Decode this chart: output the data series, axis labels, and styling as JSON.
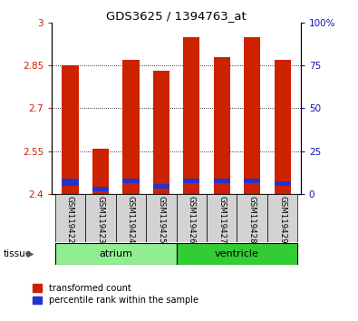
{
  "title": "GDS3625 / 1394763_at",
  "samples": [
    "GSM119422",
    "GSM119423",
    "GSM119424",
    "GSM119425",
    "GSM119426",
    "GSM119427",
    "GSM119428",
    "GSM119429"
  ],
  "red_tops": [
    2.85,
    2.56,
    2.87,
    2.83,
    2.95,
    2.88,
    2.95,
    2.87
  ],
  "blue_bottoms": [
    2.43,
    2.41,
    2.44,
    2.42,
    2.44,
    2.44,
    2.44,
    2.43
  ],
  "blue_tops": [
    2.455,
    2.425,
    2.455,
    2.435,
    2.455,
    2.455,
    2.455,
    2.445
  ],
  "ymin": 2.4,
  "ymax": 3.0,
  "yticks": [
    2.4,
    2.55,
    2.7,
    2.85,
    3.0
  ],
  "ytick_labels": [
    "2.4",
    "2.55",
    "2.7",
    "2.85",
    "3"
  ],
  "right_yticks": [
    0,
    25,
    50,
    75,
    100
  ],
  "right_ytick_labels": [
    "0",
    "25",
    "50",
    "75",
    "100%"
  ],
  "groups": [
    {
      "label": "atrium",
      "start": 0,
      "end": 3,
      "color": "#90ee90"
    },
    {
      "label": "ventricle",
      "start": 4,
      "end": 7,
      "color": "#32cd32"
    }
  ],
  "bar_color_red": "#cc2200",
  "bar_color_blue": "#2233cc",
  "bar_width": 0.55,
  "legend_red_label": "transformed count",
  "legend_blue_label": "percentile rank within the sample",
  "tissue_label": "tissue",
  "left_tick_color": "#cc2200",
  "right_tick_color": "#1111bb"
}
